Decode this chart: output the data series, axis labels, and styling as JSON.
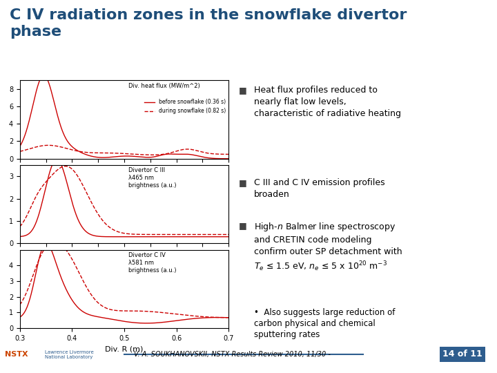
{
  "title": "C IV radiation zones in the snowflake divertor\nphase",
  "title_color": "#1F4E79",
  "title_fontsize": 16,
  "bg_color": "#FFFFFF",
  "header_line_color": "#2E5D8E",
  "bullet1": "Heat flux profiles reduced to\nnearly flat low levels,\ncharacteristic of radiative heating",
  "bullet2": "C III and C IV emission profiles\nbroaden",
  "bullet3_sub": "Also suggests large reduction of\ncarbon physical and chemical\nsputtering rates",
  "footer_text": "V. A. SOUKHANOVSKII, NSTX Results Review 2010, 11/30 -",
  "footer_page": "14 of 11",
  "plot_line_color": "#CC0000",
  "x_label": "Div. R (m)",
  "plot1_legend_solid": "before snowflake (0.36 s)",
  "plot1_legend_dashed": "during snowflake (0.82 s)",
  "plot2_label": "Divertor C III\nλ465 nm\nbrightness (a.u.)",
  "plot3_label": "Divertor C IV\nλ581 nm\nbrightness (a.u.)"
}
